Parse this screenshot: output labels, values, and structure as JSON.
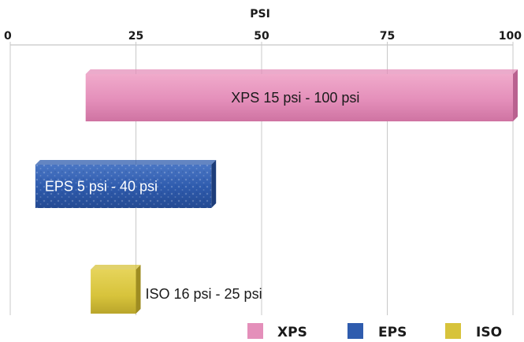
{
  "chart_data": {
    "type": "bar",
    "orientation": "horizontal",
    "xlabel": "PSI",
    "xlim": [
      0,
      100
    ],
    "x_ticks": [
      0,
      25,
      50,
      75,
      100
    ],
    "x_axis_position": "top",
    "grid": true,
    "series": [
      {
        "name": "XPS",
        "start": 15,
        "end": 100,
        "label": "XPS 15 psi - 100 psi",
        "color": "#e48fba"
      },
      {
        "name": "EPS",
        "start": 5,
        "end": 40,
        "label": "EPS 5 psi - 40 psi",
        "color": "#2f5cae"
      },
      {
        "name": "ISO",
        "start": 16,
        "end": 25,
        "label": "ISO 16 psi - 25 psi",
        "color": "#d7c33b"
      }
    ],
    "legend": {
      "position": "bottom-right",
      "entries": [
        {
          "name": "XPS",
          "color": "#e48fba"
        },
        {
          "name": "EPS",
          "color": "#2f5cae"
        },
        {
          "name": "ISO",
          "color": "#d7c33b"
        }
      ]
    }
  }
}
